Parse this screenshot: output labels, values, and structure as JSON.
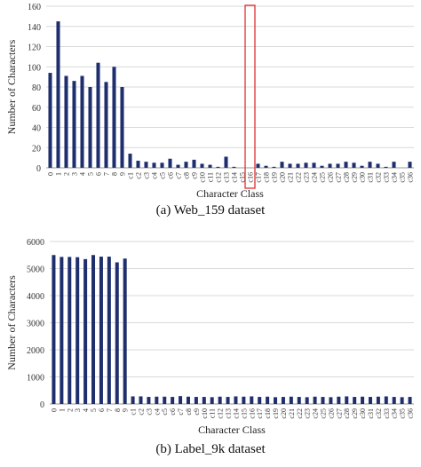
{
  "chart_data": [
    {
      "type": "bar",
      "caption": "(a) Web_159 dataset",
      "xlabel": "Character Class",
      "ylabel": "Number of Characters",
      "ylim": [
        0,
        160
      ],
      "yticks": [
        0,
        20,
        40,
        60,
        80,
        100,
        120,
        140,
        160
      ],
      "grid": "horizontal",
      "bar_color": "#1f2f6e",
      "highlight_color": "#e03030",
      "highlight_category": "c16",
      "categories": [
        "0",
        "1",
        "2",
        "3",
        "4",
        "5",
        "6",
        "7",
        "8",
        "9",
        "c1",
        "c2",
        "c3",
        "c4",
        "c5",
        "c6",
        "c7",
        "c8",
        "c9",
        "c10",
        "c11",
        "c12",
        "c13",
        "c14",
        "c15",
        "c16",
        "c17",
        "c18",
        "c19",
        "c20",
        "c21",
        "c22",
        "c23",
        "c24",
        "c25",
        "c26",
        "c27",
        "c28",
        "c29",
        "c30",
        "c31",
        "c32",
        "c33",
        "c34",
        "c35",
        "c36"
      ],
      "values": [
        94,
        145,
        91,
        86,
        91,
        80,
        104,
        85,
        100,
        80,
        14,
        7,
        6,
        5,
        5,
        9,
        3,
        6,
        8,
        4,
        3,
        1,
        11,
        1,
        0,
        0,
        4,
        2,
        1,
        6,
        4,
        4,
        5,
        5,
        2,
        4,
        4,
        6,
        5,
        2,
        6,
        4,
        1,
        6,
        0,
        6
      ]
    },
    {
      "type": "bar",
      "caption": "(b) Label_9k dataset",
      "xlabel": "Character Class",
      "ylabel": "Number of Characters",
      "ylim": [
        0,
        6000
      ],
      "yticks": [
        0,
        1000,
        2000,
        3000,
        4000,
        5000,
        6000
      ],
      "grid": "horizontal",
      "bar_color": "#1f2f6e",
      "categories": [
        "0",
        "1",
        "2",
        "3",
        "4",
        "5",
        "6",
        "7",
        "8",
        "9",
        "c1",
        "c2",
        "c3",
        "c4",
        "c5",
        "c6",
        "c7",
        "c8",
        "c9",
        "c10",
        "c11",
        "c12",
        "c13",
        "c14",
        "c15",
        "c16",
        "c17",
        "c18",
        "c19",
        "c20",
        "c21",
        "c22",
        "c23",
        "c24",
        "c25",
        "c26",
        "c27",
        "c28",
        "c29",
        "c30",
        "c31",
        "c32",
        "c33",
        "c34",
        "c35",
        "c36"
      ],
      "values": [
        5500,
        5430,
        5430,
        5420,
        5350,
        5500,
        5440,
        5440,
        5230,
        5370,
        280,
        280,
        260,
        270,
        270,
        260,
        290,
        270,
        260,
        260,
        250,
        270,
        260,
        280,
        270,
        280,
        260,
        270,
        250,
        260,
        270,
        260,
        250,
        270,
        260,
        250,
        270,
        280,
        260,
        270,
        260,
        270,
        280,
        260,
        250,
        260
      ]
    }
  ]
}
